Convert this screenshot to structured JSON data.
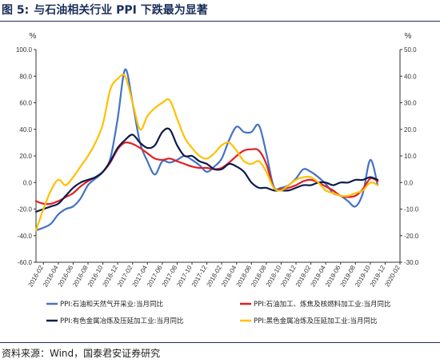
{
  "title": {
    "figure": "图 5:",
    "text": "与石油相关行业 PPI 下跌最为显著"
  },
  "source": "资料来源：Wind，国泰君安证券研究",
  "chart_data": {
    "type": "line",
    "left_axis": {
      "unit": "%",
      "range": [
        -60,
        100
      ],
      "ticks": [
        "100.0",
        "80.0",
        "60.0",
        "40.0",
        "20.0",
        "0.0",
        "-20.0",
        "-40.0",
        "-60.0"
      ]
    },
    "right_axis": {
      "unit": "%",
      "range": [
        -30,
        50
      ],
      "ticks": [
        "50.0",
        "40.0",
        "30.0",
        "20.0",
        "10.0",
        "0.0",
        "-10.0",
        "-20.0",
        "-30.0"
      ]
    },
    "x_range": [
      "2016-01",
      "2020-02"
    ],
    "x_tick_labels": [
      "2016-02",
      "2016-04",
      "2016-06",
      "2016-08",
      "2016-10",
      "2016-12",
      "2017-02",
      "2017-04",
      "2017-06",
      "2017-08",
      "2017-10",
      "2017-12",
      "2018-02",
      "2018-04",
      "2018-06",
      "2018-08",
      "2018-10",
      "2018-12",
      "2019-02",
      "2019-04",
      "2019-06",
      "2019-08",
      "2019-10",
      "2019-12",
      "2020-02"
    ],
    "legend_position": "bottom",
    "series": [
      {
        "name": "PPI:石油和天然气开采业:当月同比",
        "axis": "left",
        "color": "#4472c4",
        "values": [
          -36,
          -34,
          -31,
          -24,
          -20,
          -18,
          -12,
          -2,
          3,
          8,
          18,
          48,
          85,
          60,
          30,
          16,
          6,
          16,
          15,
          17,
          20,
          17,
          13,
          8,
          12,
          18,
          32,
          42,
          38,
          38,
          43,
          22,
          -3,
          -4,
          -2,
          3,
          10,
          8,
          4,
          -1,
          -8,
          -10,
          -14,
          -18,
          -8,
          17,
          -2
        ]
      },
      {
        "name": "PPI:石油加工、炼焦及核燃料加工业:当月同比",
        "axis": "left",
        "color": "#e02020",
        "values": [
          -14,
          -16,
          -16,
          -14,
          -11,
          -8,
          -3,
          1,
          4,
          8,
          15,
          25,
          30,
          29,
          26,
          22,
          18,
          17,
          18,
          16,
          14,
          12,
          11,
          11,
          10,
          11,
          15,
          20,
          24,
          25,
          24,
          14,
          -4,
          -5,
          -4,
          -2,
          1,
          2,
          0,
          -3,
          -6,
          -10,
          -11,
          -10,
          -5,
          3,
          1
        ]
      },
      {
        "name": "PPI:有色金属冶炼及压延加工业:当月同比",
        "axis": "right",
        "color": "#0d1b4f",
        "values": [
          -11,
          -10,
          -9,
          -8,
          -5,
          -2,
          0,
          1,
          2,
          4,
          8,
          13,
          16,
          18,
          15,
          13,
          14,
          19,
          20,
          14,
          10,
          10,
          8,
          7,
          5,
          5,
          7,
          6,
          4,
          0,
          -2,
          -2,
          -3,
          -3,
          -3,
          -2,
          -1,
          -1,
          0,
          0,
          -1,
          0,
          0,
          1,
          1,
          2,
          1
        ]
      },
      {
        "name": "PPI:黑色金属冶炼及压延加工业:当月同比",
        "axis": "right",
        "color": "#ffc000",
        "values": [
          -18,
          -10,
          -3,
          1,
          -1,
          2,
          6,
          10,
          15,
          22,
          35,
          39,
          40,
          30,
          20,
          25,
          28,
          30,
          31,
          24,
          17,
          13,
          10,
          9,
          11,
          14,
          15,
          12,
          8,
          7,
          8,
          4,
          -2,
          -3,
          -1,
          1,
          2,
          2,
          0,
          -3,
          -4,
          -5,
          -5,
          -4,
          -3,
          0,
          -1
        ]
      }
    ]
  }
}
